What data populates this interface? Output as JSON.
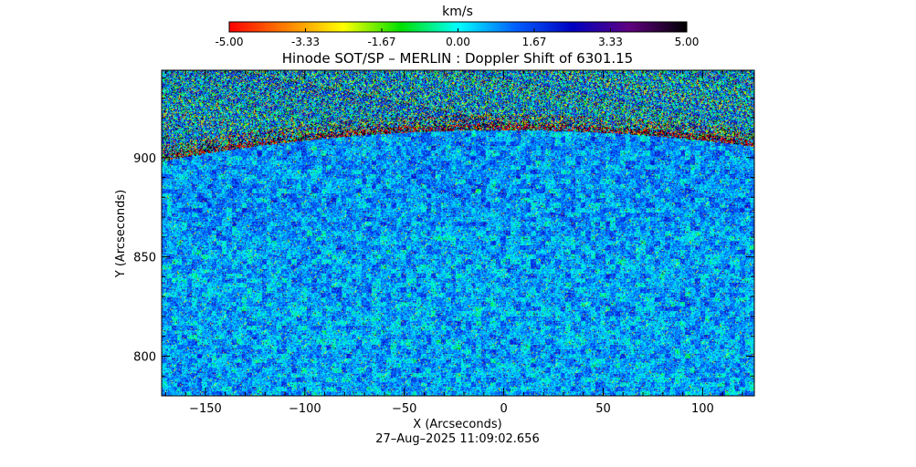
{
  "colorbar": {
    "unit": "km/s",
    "ticks": [
      "-5.00",
      "-3.33",
      "-1.67",
      "0.00",
      "1.67",
      "3.33",
      "5.00"
    ],
    "range": [
      -5,
      5
    ],
    "stops": [
      "#ff0000",
      "#ff8000",
      "#ffff00",
      "#00e000",
      "#00ffff",
      "#0060ff",
      "#0000c0",
      "#600080",
      "#000000"
    ]
  },
  "chart_data": {
    "type": "heatmap",
    "title": "Hinode SOT/SP – MERLIN : Doppler Shift of 6301.15",
    "xlabel": "X (Arcseconds)",
    "ylabel": "Y (Arcseconds)",
    "xlim": [
      -172,
      126
    ],
    "ylim": [
      780,
      944
    ],
    "x_ticks": [
      -150,
      -100,
      -50,
      0,
      50,
      100
    ],
    "y_ticks": [
      800,
      850,
      900
    ],
    "limb_y_at_center": 914,
    "colorbar_label": "km/s",
    "zlim": [
      -5,
      5
    ]
  },
  "timestamp": "27–Aug–2025 11:09:02.656"
}
